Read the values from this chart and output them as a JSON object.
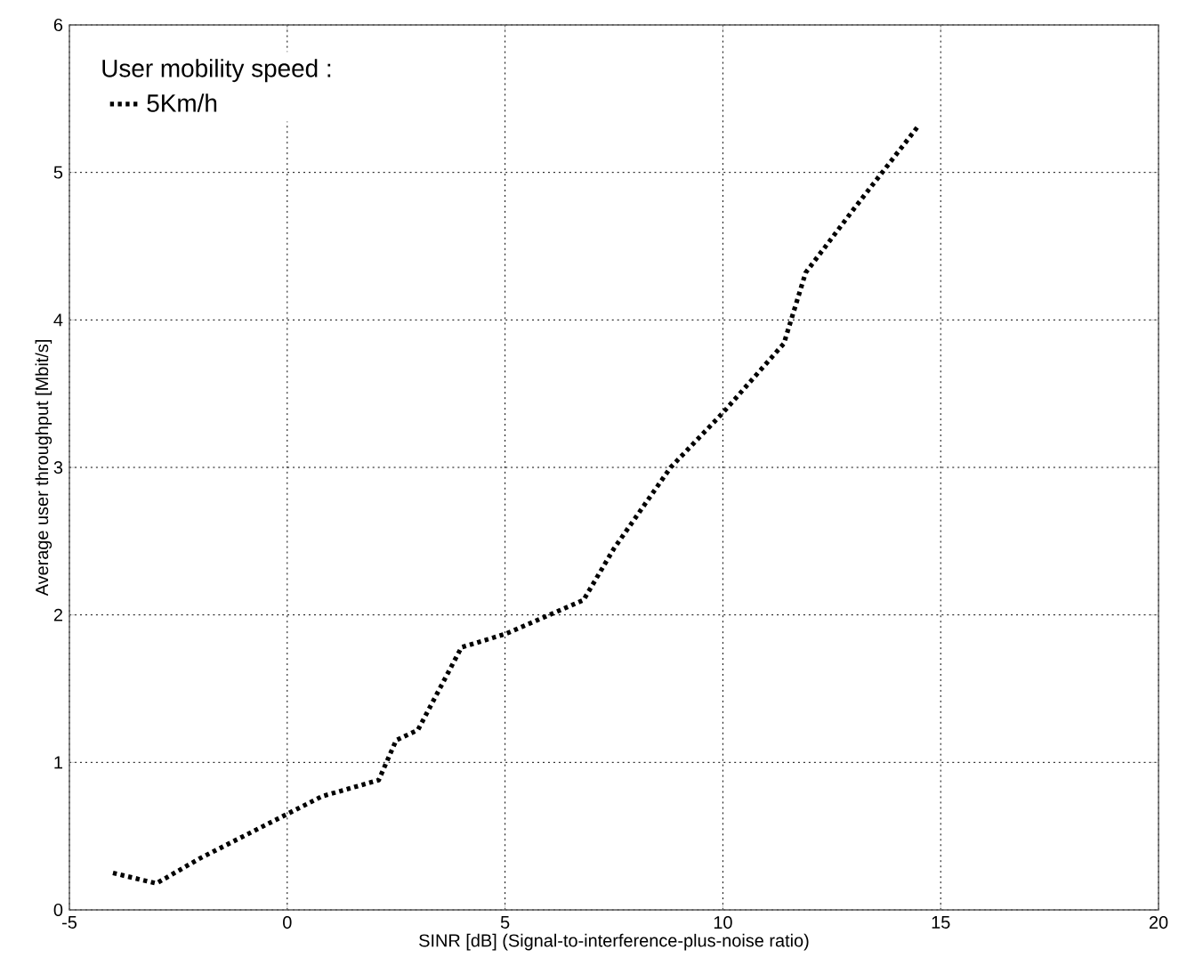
{
  "chart_data": {
    "type": "line",
    "xlabel": "SINR [dB] (Signal-to-interference-plus-noise ratio)",
    "ylabel": "Average user throughput [Mbit/s]",
    "legend_title": "User mobility speed :",
    "x": [
      -4,
      -3,
      -2,
      -1,
      0,
      0.8,
      2.1,
      2.5,
      3,
      3.5,
      4,
      5,
      6.8,
      7.5,
      8.8,
      10,
      11.4,
      11.9,
      13,
      14.5
    ],
    "series": [
      {
        "name": "5Km/h",
        "color": "#000000",
        "values": [
          0.25,
          0.18,
          0.35,
          0.5,
          0.65,
          0.77,
          0.88,
          1.15,
          1.22,
          1.5,
          1.78,
          1.87,
          2.1,
          2.45,
          3.0,
          3.37,
          3.84,
          4.32,
          4.75,
          5.32
        ]
      }
    ],
    "xlim": [
      -5,
      20
    ],
    "ylim": [
      0,
      6
    ],
    "xticks": [
      -5,
      0,
      5,
      10,
      15,
      20
    ],
    "yticks": [
      0,
      1,
      2,
      3,
      4,
      5,
      6
    ],
    "grid": true,
    "legend": "top left",
    "marker": "none",
    "line_style": "dotted"
  }
}
